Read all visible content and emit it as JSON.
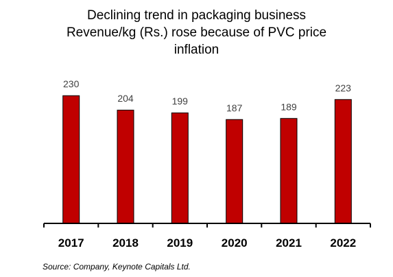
{
  "chart_data": {
    "type": "bar",
    "title_lines": [
      "Declining trend in packaging business",
      "Revenue/kg (Rs.) rose because of PVC price",
      "inflation"
    ],
    "xlabel": "",
    "ylabel": "",
    "categories": [
      "2017",
      "2018",
      "2019",
      "2020",
      "2021",
      "2022"
    ],
    "values": [
      230,
      204,
      199,
      187,
      189,
      223
    ],
    "data_labels": [
      "230",
      "204",
      "199",
      "187",
      "189",
      "223"
    ],
    "ylim": [
      0,
      255
    ],
    "grid": false,
    "legend": "none",
    "bar_color": "#C00000",
    "axis_color": "#000000"
  },
  "source_note": "Source: Company, Keynote Capitals Ltd."
}
